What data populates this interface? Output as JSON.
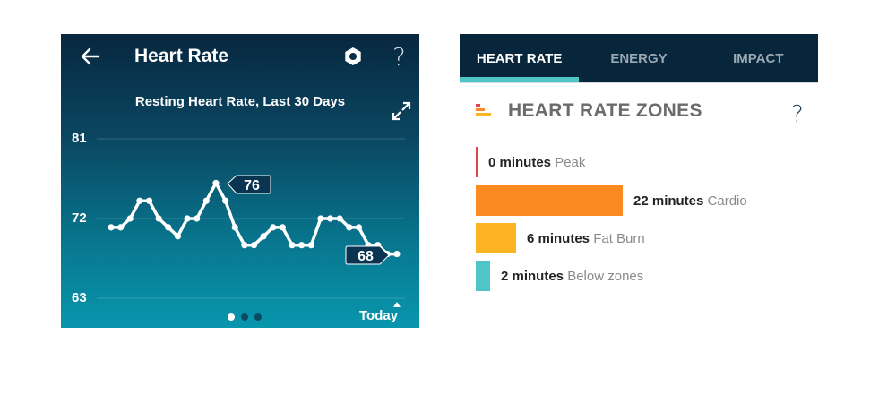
{
  "left_panel": {
    "header": {
      "back_icon": "arrow-left-icon",
      "title": "Heart Rate",
      "settings_icon": "gear-icon",
      "help_label": "?"
    },
    "subtitle": "Resting Heart Rate, Last 30 Days",
    "expand_icon": "expand-arrows-icon",
    "y_labels": [
      "81",
      "72",
      "63"
    ],
    "callouts": {
      "max": "76",
      "latest": "68"
    },
    "pager": {
      "count": 3,
      "active_index": 0
    },
    "x_label_today": "Today",
    "colors": {
      "gradient_top": "#08273f",
      "gradient_bottom": "#0896ad",
      "line": "#ffffff"
    }
  },
  "chart_data": {
    "type": "line",
    "title": "Resting Heart Rate, Last 30 Days",
    "xlabel": "",
    "ylabel": "",
    "x_tick_labels": [
      "Today"
    ],
    "y_ticks": [
      63,
      72,
      81
    ],
    "ylim": [
      63,
      81
    ],
    "grid": true,
    "legend": null,
    "annotations": [
      {
        "label": "76",
        "index": 11
      },
      {
        "label": "68",
        "index": 30
      }
    ],
    "values": [
      71,
      71,
      72,
      74,
      74,
      72,
      71,
      70,
      72,
      72,
      74,
      76,
      74,
      71,
      69,
      69,
      70,
      71,
      71,
      69,
      69,
      69,
      72,
      72,
      72,
      71,
      71,
      69,
      69,
      68,
      68
    ]
  },
  "right_panel": {
    "tabs": [
      {
        "label": "HEART RATE",
        "active": true
      },
      {
        "label": "ENERGY",
        "active": false
      },
      {
        "label": "IMPACT",
        "active": false
      }
    ],
    "section_title": "HEART RATE ZONES",
    "section_icon": "zones-bars-icon",
    "help_label": "?",
    "zones": [
      {
        "minutes": "0 minutes",
        "name": "Peak",
        "value": 0,
        "color": "#e0454f"
      },
      {
        "minutes": "22 minutes",
        "name": "Cardio",
        "value": 22,
        "color": "#fb8b20"
      },
      {
        "minutes": "6 minutes",
        "name": "Fat Burn",
        "value": 6,
        "color": "#fdb422"
      },
      {
        "minutes": "2 minutes",
        "name": "Below zones",
        "value": 2,
        "color": "#4ec5c8"
      }
    ]
  }
}
